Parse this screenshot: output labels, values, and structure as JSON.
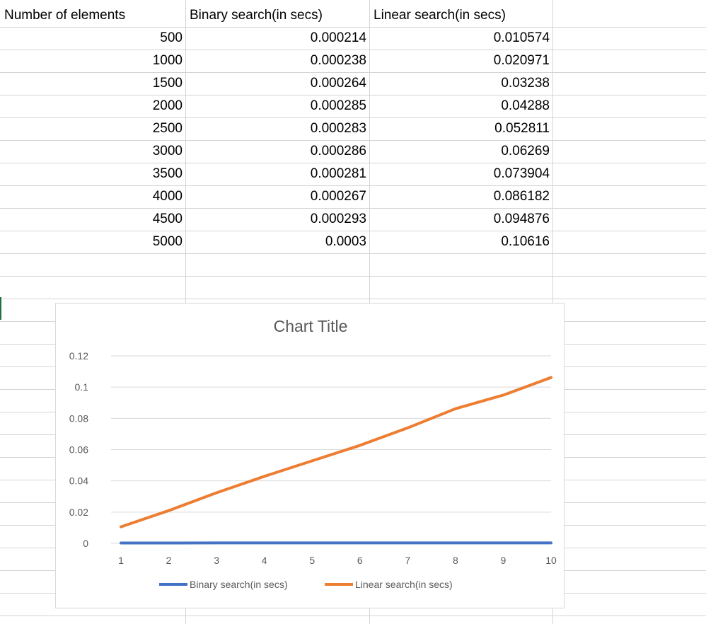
{
  "table": {
    "headers": [
      "Number of elements",
      "Binary search(in secs)",
      "Linear search(in secs)"
    ],
    "rows": [
      [
        "500",
        "0.000214",
        "0.010574"
      ],
      [
        "1000",
        "0.000238",
        "0.020971"
      ],
      [
        "1500",
        "0.000264",
        "0.03238"
      ],
      [
        "2000",
        "0.000285",
        "0.04288"
      ],
      [
        "2500",
        "0.000283",
        "0.052811"
      ],
      [
        "3000",
        "0.000286",
        "0.06269"
      ],
      [
        "3500",
        "0.000281",
        "0.073904"
      ],
      [
        "4000",
        "0.000267",
        "0.086182"
      ],
      [
        "4500",
        "0.000293",
        "0.094876"
      ],
      [
        "5000",
        "0.0003",
        "0.10616"
      ]
    ]
  },
  "chart_data": {
    "type": "line",
    "title": "Chart Title",
    "x": [
      1,
      2,
      3,
      4,
      5,
      6,
      7,
      8,
      9,
      10
    ],
    "x_tick_labels": [
      "1",
      "2",
      "3",
      "4",
      "5",
      "6",
      "7",
      "8",
      "9",
      "10"
    ],
    "y_tick_labels": [
      "0",
      "0.02",
      "0.04",
      "0.06",
      "0.08",
      "0.1",
      "0.12"
    ],
    "ylim": [
      0,
      0.12
    ],
    "grid": true,
    "legend": "bottom",
    "series": [
      {
        "name": "Binary search(in secs)",
        "color": "#4472c4",
        "values": [
          0.000214,
          0.000238,
          0.000264,
          0.000285,
          0.000283,
          0.000286,
          0.000281,
          0.000267,
          0.000293,
          0.0003
        ]
      },
      {
        "name": "Linear search(in secs)",
        "color": "#ed7d31",
        "values": [
          0.010574,
          0.020971,
          0.03238,
          0.04288,
          0.052811,
          0.06269,
          0.073904,
          0.086182,
          0.094876,
          0.10616
        ]
      }
    ]
  },
  "colors": {
    "gridline": "#d9d9d9",
    "axis_text": "#595959",
    "title_text": "#595959"
  }
}
